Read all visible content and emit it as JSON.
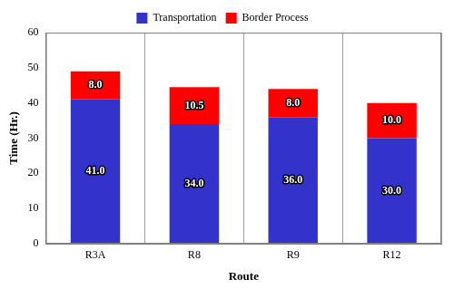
{
  "chart_data": {
    "type": "bar",
    "stacked": true,
    "x_label": "Route",
    "y_label": "Time (Hr.)",
    "categories": [
      "R3A",
      "R8",
      "R9",
      "R12"
    ],
    "series": [
      {
        "name": "Transportation",
        "color": "#3333cc",
        "values": [
          41,
          34,
          36,
          30
        ],
        "value_labels": [
          "41.0",
          "34.0",
          "36.0",
          "30.0"
        ]
      },
      {
        "name": "Border Process",
        "color": "#ff0000",
        "values": [
          8,
          10.5,
          8,
          10
        ],
        "value_labels": [
          "8.0",
          "10.5",
          "8.0",
          "10.0"
        ]
      }
    ],
    "ylim": [
      0,
      60
    ],
    "yticks": [
      0,
      10,
      20,
      30,
      40,
      50,
      60
    ],
    "grid": true,
    "legend": "top",
    "data_labels": true
  }
}
